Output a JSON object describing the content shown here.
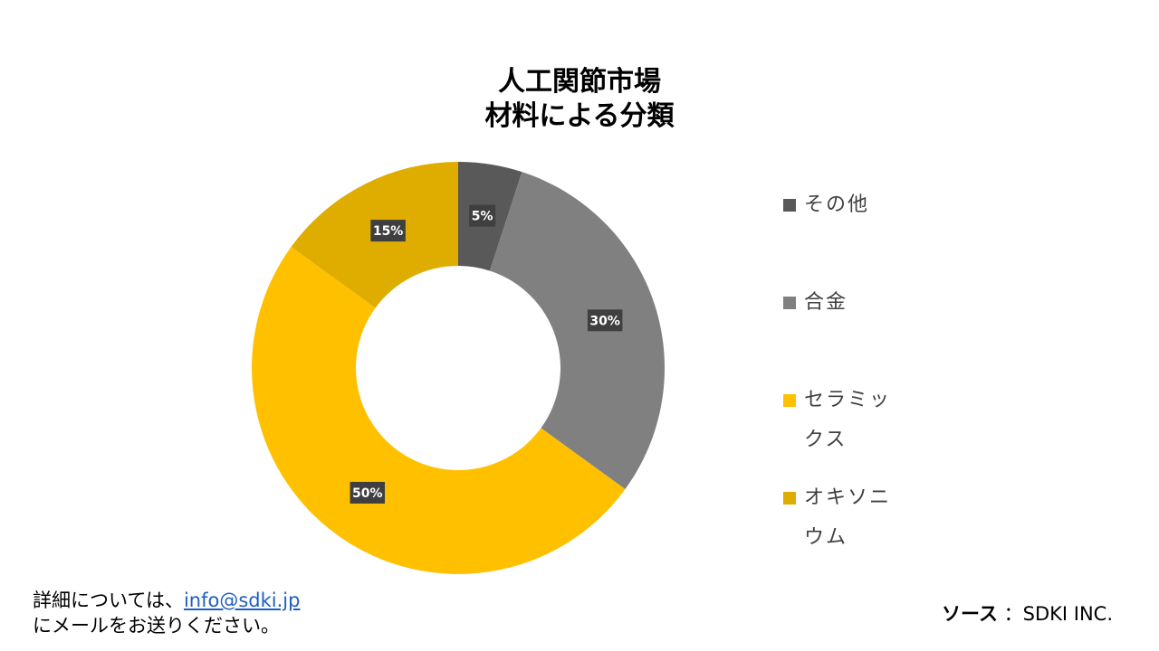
{
  "chart_data": {
    "type": "pie",
    "donut": true,
    "title_lines": [
      "人工関節市場",
      "材料による分類"
    ],
    "categories": [
      "その他",
      "合金",
      "セラミックス",
      "オキソニウム"
    ],
    "values": [
      5,
      30,
      50,
      15
    ],
    "value_labels": [
      "5%",
      "30%",
      "50%",
      "15%"
    ],
    "colors": [
      "#595959",
      "#808080",
      "#ffc000",
      "#dfac00"
    ],
    "legend_position": "right"
  },
  "footer": {
    "note_prefix": "詳細については、",
    "email": "info@sdki.jp",
    "note_line2": "にメールをお送りください。",
    "source_label": "ソース",
    "source_value": "：SDKI INC."
  }
}
